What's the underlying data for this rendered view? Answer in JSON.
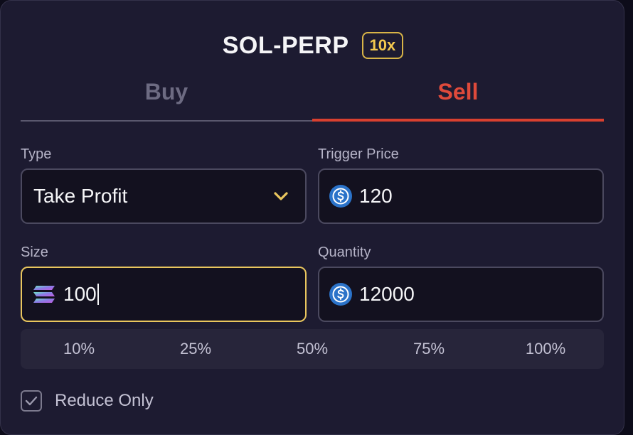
{
  "header": {
    "market": "SOL-PERP",
    "leverage": "10x"
  },
  "tabs": [
    {
      "label": "Buy",
      "active": false
    },
    {
      "label": "Sell",
      "active": true
    }
  ],
  "order_type": {
    "label": "Type",
    "value": "Take Profit"
  },
  "trigger_price": {
    "label": "Trigger Price",
    "value": "120",
    "icon": "usdc-icon"
  },
  "size": {
    "label": "Size",
    "value": "100",
    "icon": "sol-icon",
    "focused": true
  },
  "quantity": {
    "label": "Quantity",
    "value": "12000",
    "icon": "usdc-icon"
  },
  "percent_options": [
    "10%",
    "25%",
    "50%",
    "75%",
    "100%"
  ],
  "reduce_only": {
    "label": "Reduce Only",
    "checked": true
  },
  "colors": {
    "accent_sell": "#df4a3b",
    "accent_focus": "#e9c65e",
    "leverage_badge": "#f3c94f",
    "usdc_blue": "#2b73c9"
  }
}
